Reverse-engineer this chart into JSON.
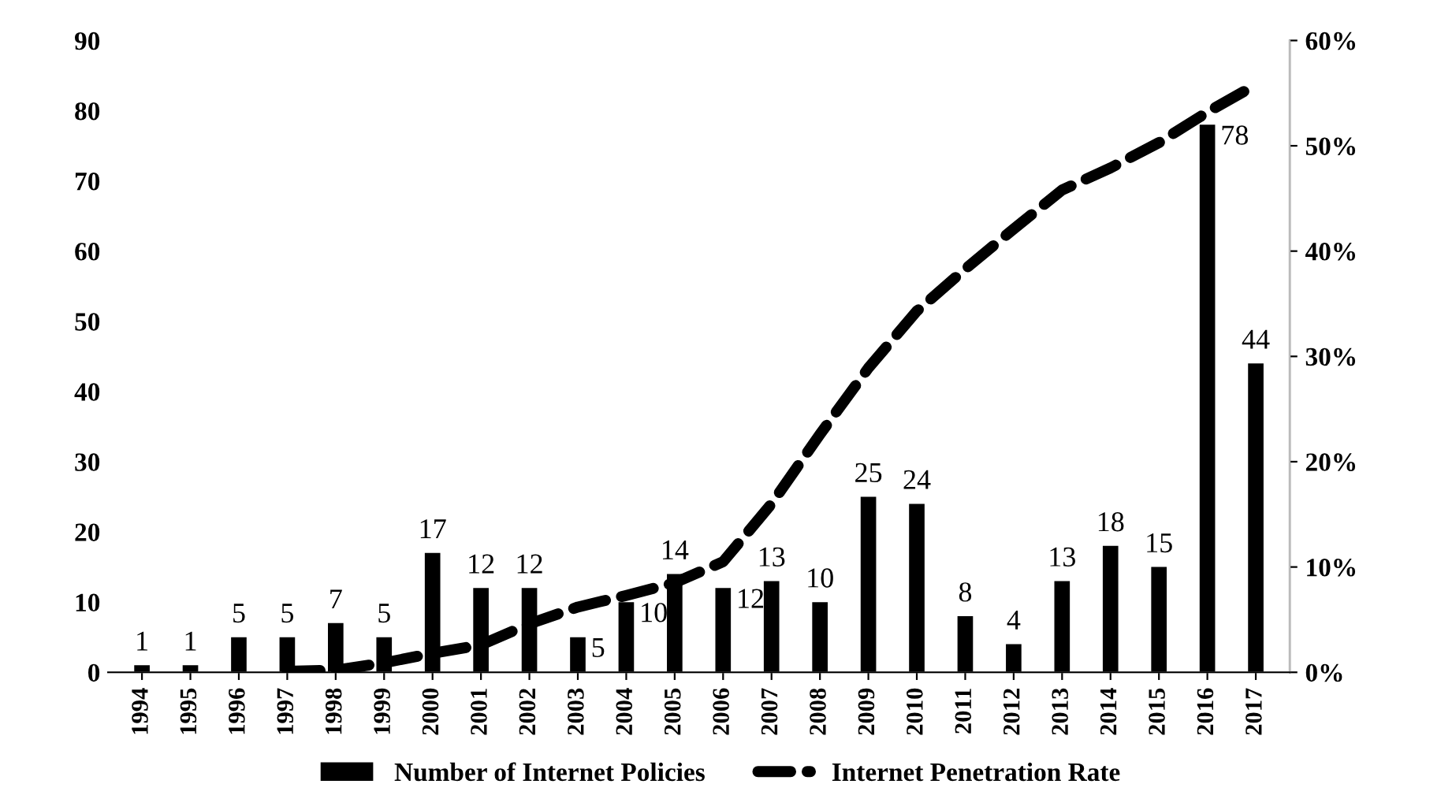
{
  "chart_data": {
    "type": "bar",
    "categories": [
      "1994",
      "1995",
      "1996",
      "1997",
      "1998",
      "1999",
      "2000",
      "2001",
      "2002",
      "2003",
      "2004",
      "2005",
      "2006",
      "2007",
      "2008",
      "2009",
      "2010",
      "2011",
      "2012",
      "2013",
      "2014",
      "2015",
      "2016",
      "2017"
    ],
    "series": [
      {
        "name": "Number of Internet Policies",
        "color": "#000000",
        "values": [
          1,
          1,
          5,
          5,
          7,
          5,
          17,
          12,
          12,
          5,
          10,
          14,
          12,
          13,
          10,
          25,
          24,
          8,
          4,
          13,
          18,
          15,
          78,
          44
        ],
        "value_labels": [
          "1",
          "1",
          "5",
          "5",
          "7",
          "5",
          "17",
          "12",
          "12",
          "5",
          "10",
          "14",
          "12",
          "13",
          "10",
          "25",
          "24",
          "8",
          "4",
          "13",
          "18",
          "15",
          "78",
          "44"
        ]
      },
      {
        "name": "Internet Penetration Rate",
        "color": "#000000",
        "type": "line",
        "axis": "y2",
        "line_style": "dashed",
        "values": [
          null,
          null,
          null,
          0.1,
          0.2,
          0.9,
          1.8,
          2.6,
          4.6,
          6.2,
          7.3,
          8.5,
          10.5,
          16,
          22.6,
          28.9,
          34.3,
          38.3,
          42.1,
          45.8,
          47.9,
          50.3,
          53.2,
          55.8
        ]
      }
    ],
    "ylim": [
      0,
      90
    ],
    "yticks": [
      0,
      10,
      20,
      30,
      40,
      50,
      60,
      70,
      80,
      90
    ],
    "y2lim": [
      0,
      60
    ],
    "y2ticks": [
      {
        "value": 0,
        "label": "0%"
      },
      {
        "value": 10,
        "label": "10%"
      },
      {
        "value": 20,
        "label": "20%"
      },
      {
        "value": 30,
        "label": "30%"
      },
      {
        "value": 40,
        "label": "40%"
      },
      {
        "value": 50,
        "label": "50%"
      },
      {
        "value": 60,
        "label": "60%"
      }
    ],
    "grid": false,
    "legend": "bottom"
  }
}
